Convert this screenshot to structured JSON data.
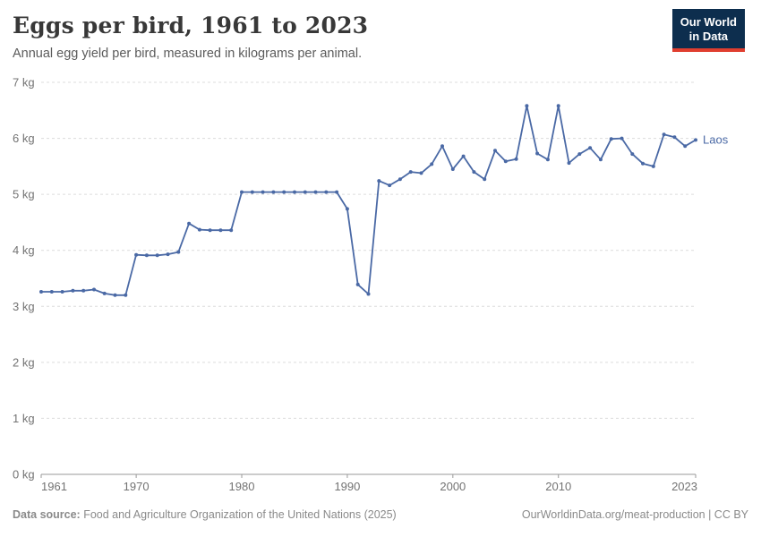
{
  "header": {
    "title": "Eggs per bird, 1961 to 2023",
    "subtitle": "Annual egg yield per bird, measured in kilograms per animal."
  },
  "logo": {
    "line1": "Our World",
    "line2": "in Data"
  },
  "footer": {
    "source_label": "Data source:",
    "source_text": " Food and Agriculture Organization of the United Nations (2025)",
    "link_text": "OurWorldinData.org/meat-production | CC BY"
  },
  "colors": {
    "line": "#4a69a5",
    "grid": "#dcdcdc",
    "axis": "#999999",
    "tick_label": "#737373",
    "logo_bg": "#0d2e4e",
    "logo_red": "#e03e2f"
  },
  "chart_data": {
    "type": "line",
    "title": "Eggs per bird, 1961 to 2023",
    "xlabel": "",
    "ylabel": "kg",
    "xlim": [
      1961,
      2023
    ],
    "ylim": [
      0,
      7
    ],
    "grid": "horizontal dashed",
    "legend": "end-of-line label",
    "x_ticks": [
      1961,
      1970,
      1980,
      1990,
      2000,
      2010,
      2023
    ],
    "y_ticks": [
      {
        "value": 0,
        "label": "0 kg"
      },
      {
        "value": 1,
        "label": "1 kg"
      },
      {
        "value": 2,
        "label": "2 kg"
      },
      {
        "value": 3,
        "label": "3 kg"
      },
      {
        "value": 4,
        "label": "4 kg"
      },
      {
        "value": 5,
        "label": "5 kg"
      },
      {
        "value": 6,
        "label": "6 kg"
      },
      {
        "value": 7,
        "label": "7 kg"
      }
    ],
    "series": [
      {
        "name": "Laos",
        "x": [
          1961,
          1962,
          1963,
          1964,
          1965,
          1966,
          1967,
          1968,
          1969,
          1970,
          1971,
          1972,
          1973,
          1974,
          1975,
          1976,
          1977,
          1978,
          1979,
          1980,
          1981,
          1982,
          1983,
          1984,
          1985,
          1986,
          1987,
          1988,
          1989,
          1990,
          1991,
          1992,
          1993,
          1994,
          1995,
          1996,
          1997,
          1998,
          1999,
          2000,
          2001,
          2002,
          2003,
          2004,
          2005,
          2006,
          2007,
          2008,
          2009,
          2010,
          2011,
          2012,
          2013,
          2014,
          2015,
          2016,
          2017,
          2018,
          2019,
          2020,
          2021,
          2022,
          2023
        ],
        "values": [
          3.26,
          3.26,
          3.26,
          3.28,
          3.28,
          3.3,
          3.23,
          3.2,
          3.2,
          3.92,
          3.91,
          3.91,
          3.93,
          3.97,
          4.48,
          4.37,
          4.36,
          4.36,
          4.36,
          5.04,
          5.04,
          5.04,
          5.04,
          5.04,
          5.04,
          5.04,
          5.04,
          5.04,
          5.04,
          4.74,
          3.39,
          3.22,
          5.24,
          5.16,
          5.27,
          5.4,
          5.38,
          5.54,
          5.86,
          5.45,
          5.68,
          5.4,
          5.27,
          5.78,
          5.59,
          5.63,
          6.58,
          5.73,
          5.62,
          6.58,
          5.56,
          5.72,
          5.83,
          5.62,
          5.99,
          6.0,
          5.72,
          5.55,
          5.5,
          6.07,
          6.02,
          5.86,
          5.97
        ]
      }
    ]
  }
}
